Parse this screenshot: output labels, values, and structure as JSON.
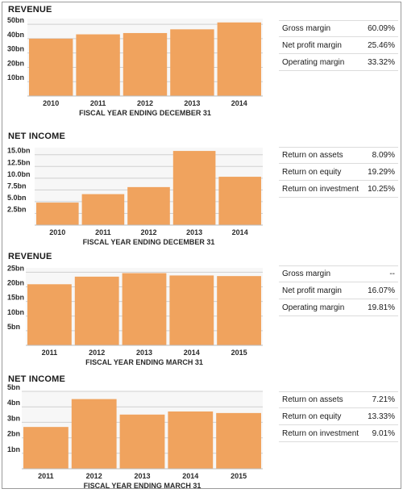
{
  "colors": {
    "bar": "#F0A35E",
    "plot_bg": "#f7f7f7",
    "grid": "#d0d0d0"
  },
  "panels": [
    {
      "title": "REVENUE",
      "ratios": [
        {
          "label": "Gross margin",
          "value": "60.09%"
        },
        {
          "label": "Net profit margin",
          "value": "25.46%"
        },
        {
          "label": "Operating margin",
          "value": "33.32%"
        }
      ],
      "chart_data": {
        "type": "bar",
        "title": "REVENUE",
        "xlabel": "FISCAL YEAR ENDING DECEMBER 31",
        "ylabel": "",
        "categories": [
          "2010",
          "2011",
          "2012",
          "2013",
          "2014"
        ],
        "values": [
          40.0,
          43.0,
          43.9,
          46.5,
          51.3
        ],
        "ylim": [
          0,
          54
        ],
        "yticks": [
          10,
          20,
          30,
          40,
          50
        ],
        "ytick_labels": [
          "10bn",
          "20bn",
          "30bn",
          "40bn",
          "50bn"
        ],
        "grid": true
      }
    },
    {
      "title": "NET INCOME",
      "ratios": [
        {
          "label": "Return on assets",
          "value": "8.09%"
        },
        {
          "label": "Return on equity",
          "value": "19.29%"
        },
        {
          "label": "Return on investment",
          "value": "10.25%"
        }
      ],
      "chart_data": {
        "type": "bar",
        "title": "NET INCOME",
        "xlabel": "FISCAL YEAR ENDING DECEMBER 31",
        "ylabel": "",
        "categories": [
          "2010",
          "2011",
          "2012",
          "2013",
          "2014"
        ],
        "values": [
          4.8,
          6.6,
          8.1,
          15.8,
          10.3
        ],
        "ylim": [
          0,
          16.5
        ],
        "yticks": [
          2.5,
          5,
          7.5,
          10,
          12.5,
          15
        ],
        "ytick_labels": [
          "2.5bn",
          "5.0bn",
          "7.5bn",
          "10.0bn",
          "12.5bn",
          "15.0bn"
        ],
        "grid": true
      }
    },
    {
      "title": "REVENUE",
      "ratios": [
        {
          "label": "Gross margin",
          "value": "--"
        },
        {
          "label": "Net profit margin",
          "value": "16.07%"
        },
        {
          "label": "Operating margin",
          "value": "19.81%"
        }
      ],
      "chart_data": {
        "type": "bar",
        "title": "REVENUE",
        "xlabel": "FISCAL YEAR ENDING MARCH 31",
        "ylabel": "",
        "categories": [
          "2011",
          "2012",
          "2013",
          "2014",
          "2015"
        ],
        "values": [
          20.9,
          23.5,
          24.7,
          23.9,
          23.7
        ],
        "ylim": [
          0,
          26.5
        ],
        "yticks": [
          5,
          10,
          15,
          20,
          25
        ],
        "ytick_labels": [
          "5bn",
          "10bn",
          "15bn",
          "20bn",
          "25bn"
        ],
        "grid": true
      }
    },
    {
      "title": "NET INCOME",
      "ratios": [
        {
          "label": "Return on assets",
          "value": "7.21%"
        },
        {
          "label": "Return on equity",
          "value": "13.33%"
        },
        {
          "label": "Return on investment",
          "value": "9.01%"
        }
      ],
      "chart_data": {
        "type": "bar",
        "title": "NET INCOME",
        "xlabel": "FISCAL YEAR ENDING MARCH 31",
        "ylabel": "",
        "categories": [
          "2011",
          "2012",
          "2013",
          "2014",
          "2015"
        ],
        "values": [
          2.7,
          4.5,
          3.5,
          3.7,
          3.6
        ],
        "ylim": [
          0,
          5
        ],
        "yticks": [
          1,
          2,
          3,
          4,
          5
        ],
        "ytick_labels": [
          "1bn",
          "2bn",
          "3bn",
          "4bn",
          "5bn"
        ],
        "grid": true
      }
    }
  ]
}
